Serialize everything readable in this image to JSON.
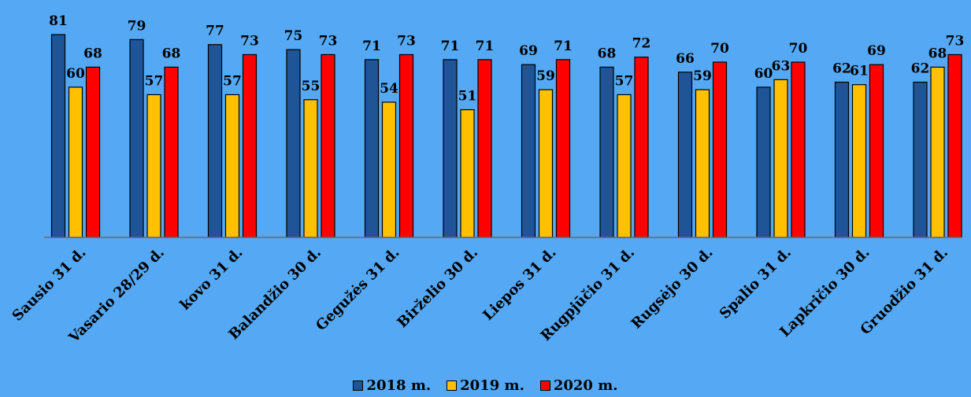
{
  "chart_data": {
    "type": "bar",
    "categories": [
      "Sausio 31 d.",
      "Vasario 28/29 d.",
      "kovo 31 d.",
      "Balandžio 30 d.",
      "Gegužės 31 d.",
      "Birželio 30 d.",
      "Liepos 31 d.",
      "Rugpjūčio 31 d.",
      "Rugsėjo 30 d.",
      "Spalio 31 d.",
      "Lapkričio 30 d.",
      "Gruodžio 31 d."
    ],
    "series": [
      {
        "name": "2018 m.",
        "color": "#1f5596",
        "values": [
          81,
          79,
          77,
          75,
          71,
          71,
          69,
          68,
          66,
          60,
          62,
          62
        ]
      },
      {
        "name": "2019 m.",
        "color": "#ffc000",
        "values": [
          60,
          57,
          57,
          55,
          54,
          51,
          59,
          57,
          59,
          63,
          61,
          68
        ]
      },
      {
        "name": "2020 m.",
        "color": "#ff0000",
        "values": [
          68,
          68,
          73,
          73,
          73,
          71,
          71,
          72,
          70,
          70,
          69,
          73
        ]
      }
    ],
    "ylim": [
      0,
      81
    ],
    "grid": false,
    "legend_position": "bottom",
    "title": "",
    "xlabel": "",
    "ylabel": "",
    "background_color": "#55a8f3"
  }
}
